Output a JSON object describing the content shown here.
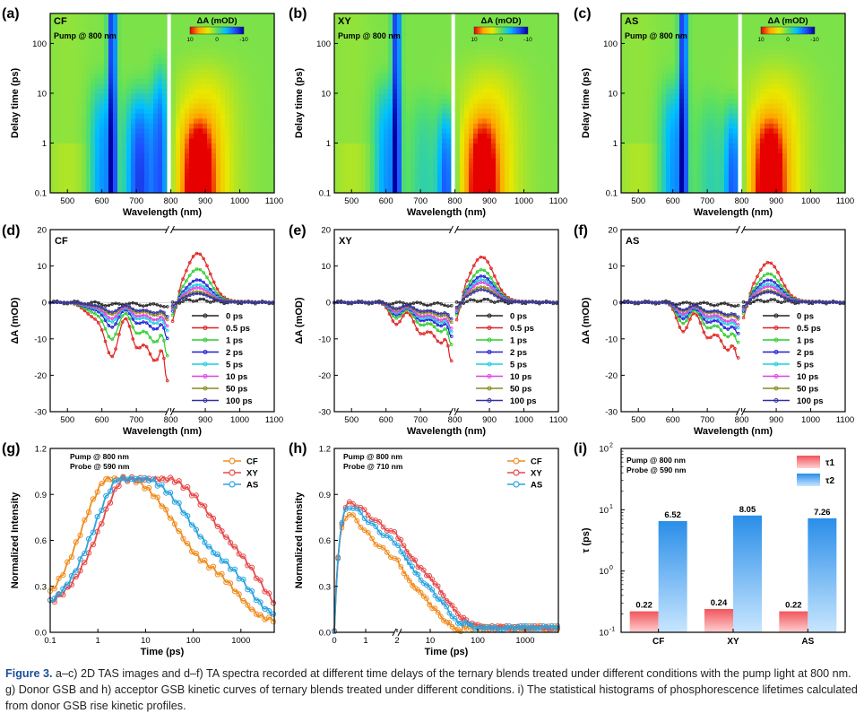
{
  "caption": {
    "label": "Figure 3.",
    "text": "a–c) 2D TAS images and d–f) TA spectra recorded at different time delays of the ternary blends treated under different conditions with the pump light at 800 nm. g) Donor GSB and h) acceptor GSB kinetic curves of ternary blends treated under different conditions. i) The statistical histograms of phosphorescence lifetimes calculated from donor GSB rise kinetic profiles."
  },
  "chart_data": [
    {
      "id": "a",
      "type": "heatmap",
      "panel_label": "(a)",
      "sample": "CF",
      "pump_text": "Pump @ 800 nm",
      "xlabel": "Wavelength (nm)",
      "ylabel": "Delay time (ps)",
      "y_scale": "log",
      "xlim": [
        450,
        1100
      ],
      "ylim": [
        0.1,
        400
      ],
      "xticks": [
        500,
        600,
        700,
        800,
        900,
        1000,
        1100
      ],
      "yticks": [
        0.1,
        1,
        10,
        100
      ],
      "colorbar": {
        "title": "ΔA (mOD)",
        "ticks": [
          10,
          0,
          -10
        ],
        "colors": [
          "#e60000",
          "#ffa500",
          "#e8e800",
          "#5ae060",
          "#00bfff",
          "#1e50ff",
          "#0000a0"
        ]
      },
      "gap_at": 795
    },
    {
      "id": "b",
      "type": "heatmap",
      "panel_label": "(b)",
      "sample": "XY",
      "pump_text": "Pump @ 800 nm",
      "xlabel": "Wavelength (nm)",
      "ylabel": "Delay time (ps)",
      "y_scale": "log",
      "xlim": [
        450,
        1100
      ],
      "ylim": [
        0.1,
        400
      ],
      "xticks": [
        500,
        600,
        700,
        800,
        900,
        1000,
        1100
      ],
      "yticks": [
        0.1,
        1,
        10,
        100
      ],
      "colorbar": {
        "title": "ΔA (mOD)",
        "ticks": [
          10,
          0,
          -10
        ],
        "colors": [
          "#e60000",
          "#ffa500",
          "#e8e800",
          "#5ae060",
          "#00bfff",
          "#1e50ff",
          "#0000a0"
        ]
      },
      "gap_at": 795
    },
    {
      "id": "c",
      "type": "heatmap",
      "panel_label": "(c)",
      "sample": "AS",
      "pump_text": "Pump @ 800 nm",
      "xlabel": "Wavelength (nm)",
      "ylabel": "Delay time (ps)",
      "y_scale": "log",
      "xlim": [
        450,
        1100
      ],
      "ylim": [
        0.1,
        400
      ],
      "xticks": [
        500,
        600,
        700,
        800,
        900,
        1000,
        1100
      ],
      "yticks": [
        0.1,
        1,
        10,
        100
      ],
      "colorbar": {
        "title": "ΔA (mOD)",
        "ticks": [
          10,
          0,
          -10
        ],
        "colors": [
          "#e60000",
          "#ffa500",
          "#e8e800",
          "#5ae060",
          "#00bfff",
          "#1e50ff",
          "#0000a0"
        ]
      },
      "gap_at": 795
    },
    {
      "id": "d",
      "type": "line",
      "panel_label": "(d)",
      "sample": "CF",
      "xlabel": "Wavelength (nm)",
      "ylabel": "ΔA (mOD)",
      "xlim": [
        450,
        1100
      ],
      "ylim": [
        -30,
        20
      ],
      "xticks": [
        500,
        600,
        700,
        800,
        900,
        1000,
        1100
      ],
      "yticks": [
        -30,
        -20,
        -10,
        0,
        10,
        20
      ],
      "legend": "right",
      "series": [
        {
          "name": "0 ps",
          "color": "#222222",
          "amp": 0.05
        },
        {
          "name": "0.5 ps",
          "color": "#e02020",
          "amp": 1.0
        },
        {
          "name": "1 ps",
          "color": "#2ecc2e",
          "amp": 0.68
        },
        {
          "name": "2 ps",
          "color": "#1f1fd6",
          "amp": 0.46
        },
        {
          "name": "5 ps",
          "color": "#18d0e0",
          "amp": 0.36
        },
        {
          "name": "10 ps",
          "color": "#e040e0",
          "amp": 0.3
        },
        {
          "name": "50 ps",
          "color": "#8a8a20",
          "amp": 0.22
        },
        {
          "name": "100 ps",
          "color": "#3030a0",
          "amp": 0.18
        }
      ],
      "shape": {
        "peak": 13.5,
        "neg": [
          {
            "c": 630,
            "w": 28,
            "d": -14
          },
          {
            "c": 700,
            "w": 25,
            "d": -11
          },
          {
            "c": 755,
            "w": 35,
            "d": -16
          },
          {
            "c": 580,
            "w": 40,
            "d": -4
          }
        ],
        "tail": -26
      }
    },
    {
      "id": "e",
      "type": "line",
      "panel_label": "(e)",
      "sample": "XY",
      "xlabel": "Wavelength (nm)",
      "ylabel": "ΔA (mOD)",
      "xlim": [
        450,
        1100
      ],
      "ylim": [
        -30,
        20
      ],
      "xticks": [
        500,
        600,
        700,
        800,
        900,
        1000,
        1100
      ],
      "yticks": [
        -30,
        -20,
        -10,
        0,
        10,
        20
      ],
      "legend": "right",
      "series": [
        {
          "name": "0 ps",
          "color": "#222222",
          "amp": 0.05
        },
        {
          "name": "0.5 ps",
          "color": "#e02020",
          "amp": 1.0
        },
        {
          "name": "1 ps",
          "color": "#2ecc2e",
          "amp": 0.72
        },
        {
          "name": "2 ps",
          "color": "#1f1fd6",
          "amp": 0.58
        },
        {
          "name": "5 ps",
          "color": "#18d0e0",
          "amp": 0.5
        },
        {
          "name": "10 ps",
          "color": "#e040e0",
          "amp": 0.44
        },
        {
          "name": "50 ps",
          "color": "#8a8a20",
          "amp": 0.34
        },
        {
          "name": "100 ps",
          "color": "#3030a0",
          "amp": 0.28
        }
      ],
      "shape": {
        "peak": 12.5,
        "neg": [
          {
            "c": 630,
            "w": 25,
            "d": -6
          },
          {
            "c": 700,
            "w": 30,
            "d": -8
          },
          {
            "c": 760,
            "w": 35,
            "d": -11
          }
        ],
        "tail": -18
      }
    },
    {
      "id": "f",
      "type": "line",
      "panel_label": "(f)",
      "sample": "AS",
      "xlabel": "Wavelength (nm)",
      "ylabel": "ΔA (mOD)",
      "xlim": [
        450,
        1100
      ],
      "ylim": [
        -30,
        20
      ],
      "xticks": [
        500,
        600,
        700,
        800,
        900,
        1000,
        1100
      ],
      "yticks": [
        -30,
        -20,
        -10,
        0,
        10,
        20
      ],
      "legend": "right",
      "series": [
        {
          "name": "0 ps",
          "color": "#222222",
          "amp": 0.05
        },
        {
          "name": "0.5 ps",
          "color": "#e02020",
          "amp": 1.0
        },
        {
          "name": "1 ps",
          "color": "#2ecc2e",
          "amp": 0.72
        },
        {
          "name": "2 ps",
          "color": "#1f1fd6",
          "amp": 0.56
        },
        {
          "name": "5 ps",
          "color": "#18d0e0",
          "amp": 0.46
        },
        {
          "name": "10 ps",
          "color": "#e040e0",
          "amp": 0.4
        },
        {
          "name": "50 ps",
          "color": "#8a8a20",
          "amp": 0.3
        },
        {
          "name": "100 ps",
          "color": "#3030a0",
          "amp": 0.26
        }
      ],
      "shape": {
        "peak": 11,
        "neg": [
          {
            "c": 630,
            "w": 25,
            "d": -8
          },
          {
            "c": 700,
            "w": 28,
            "d": -9
          },
          {
            "c": 760,
            "w": 35,
            "d": -13
          }
        ],
        "tail": -15
      }
    },
    {
      "id": "g",
      "type": "line",
      "panel_label": "(g)",
      "xlabel": "Time (ps)",
      "ylabel": "Normalized Intensity",
      "x_scale": "log",
      "xlim": [
        0.1,
        5000
      ],
      "ylim": [
        0,
        1.2
      ],
      "xticks": [
        0.1,
        1,
        10,
        100,
        1000
      ],
      "yticks": [
        0.0,
        0.3,
        0.6,
        0.9,
        1.2
      ],
      "notes": [
        "Pump @ 800 nm",
        "Probe @ 590 nm"
      ],
      "legend": "top-right",
      "series": [
        {
          "name": "CF",
          "color": "#f08c1e",
          "rise": 0.5,
          "decay": [
            0.55,
            40,
            0.45,
            900
          ],
          "offset": 0.08
        },
        {
          "name": "XY",
          "color": "#e84a4a",
          "rise": 1.2,
          "decay": [
            0.4,
            200,
            0.6,
            2500
          ],
          "offset": 0.12
        },
        {
          "name": "AS",
          "color": "#2aa4e0",
          "rise": 0.9,
          "decay": [
            0.5,
            80,
            0.5,
            1500
          ],
          "offset": 0.1
        }
      ]
    },
    {
      "id": "h",
      "type": "line",
      "panel_label": "(h)",
      "xlabel": "Time (ps)",
      "ylabel": "Normalized Intensity",
      "x_scale": "linear-log",
      "xlim": [
        0,
        5000
      ],
      "ylim": [
        0,
        1.2
      ],
      "xticks": [
        0,
        1,
        2,
        10,
        100,
        1000
      ],
      "yticks": [
        0.0,
        0.3,
        0.6,
        0.9,
        1.2
      ],
      "notes": [
        "Pump @ 800 nm",
        "Probe @ 710 nm"
      ],
      "legend": "top-right",
      "series": [
        {
          "name": "CF",
          "color": "#f08c1e",
          "decay": [
            0.6,
            1.2,
            0.4,
            12
          ]
        },
        {
          "name": "XY",
          "color": "#e84a4a",
          "decay": [
            0.5,
            1.6,
            0.5,
            25
          ]
        },
        {
          "name": "AS",
          "color": "#2aa4e0",
          "decay": [
            0.55,
            1.5,
            0.45,
            20
          ]
        }
      ]
    },
    {
      "id": "i",
      "type": "bar",
      "panel_label": "(i)",
      "xlabel": "",
      "ylabel": "τ (ps)",
      "y_scale": "log",
      "ylim": [
        0.1,
        100
      ],
      "categories": [
        "CF",
        "XY",
        "AS"
      ],
      "notes": [
        "Pump @ 800 nm",
        "Probe @ 590 nm"
      ],
      "legend": "top-right",
      "series": [
        {
          "name": "τ1",
          "color": "#f0555a",
          "values": [
            0.22,
            0.24,
            0.22
          ],
          "labels": [
            "0.22",
            "0.24",
            "0.22"
          ]
        },
        {
          "name": "τ2",
          "color": "#2a8ee8",
          "values": [
            6.52,
            8.05,
            7.26
          ],
          "labels": [
            "6.52",
            "8.05",
            "7.26"
          ]
        }
      ]
    }
  ]
}
